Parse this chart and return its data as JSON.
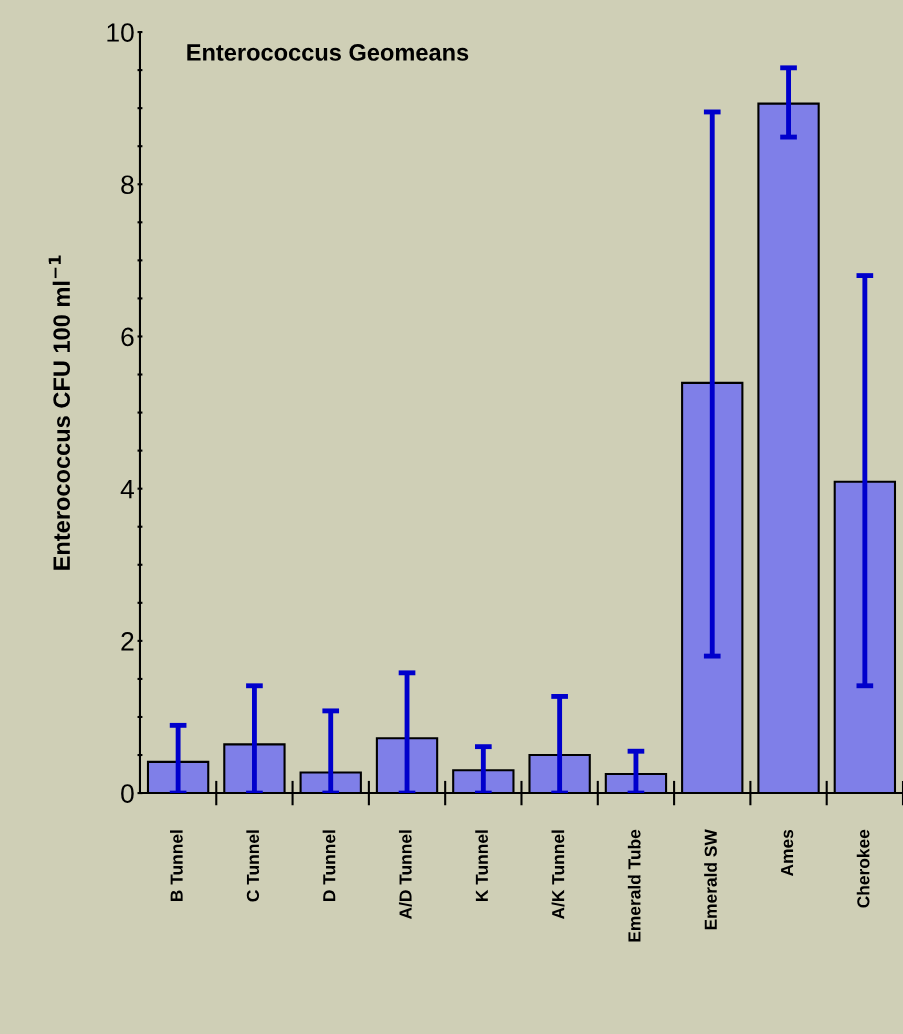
{
  "chart_data": {
    "type": "bar",
    "title": "Enterococcus Geomeans",
    "ylabel": "Enterococcus CFU 100 ml$^{−1}$",
    "categories": [
      "B Tunnel",
      "C Tunnel",
      "D Tunnel",
      "A/D Tunnel",
      "K Tunnel",
      "A/K Tunnel",
      "Emerald Tube",
      "Emerald SW",
      "Ames",
      "Cherokee"
    ],
    "series": [
      {
        "color": "#7f7fe8",
        "values": [
          0.41,
          0.64,
          0.27,
          0.72,
          0.3,
          0.5,
          0.25,
          5.39,
          9.06,
          4.09
        ],
        "errors": [
          [
            0,
            0.89
          ],
          [
            0,
            1.41
          ],
          [
            0,
            1.08
          ],
          [
            0,
            1.58
          ],
          [
            0,
            0.61
          ],
          [
            0,
            1.27
          ],
          [
            0,
            0.55
          ],
          [
            1.8,
            8.95
          ],
          [
            8.62,
            9.53
          ],
          [
            1.41,
            6.8
          ]
        ]
      }
    ],
    "ylim": [
      0,
      10
    ],
    "yticks": [
      0,
      {
        "value": 0.5,
        "label": null
      },
      {
        "value": 1,
        "label": null
      },
      {
        "value": 1.5,
        "label": null
      },
      2,
      {
        "value": 2.5,
        "label": null
      },
      {
        "value": 3,
        "label": null
      },
      {
        "value": 3.5,
        "label": null
      },
      4,
      {
        "value": 4.5,
        "label": null
      },
      {
        "value": 5,
        "label": null
      },
      {
        "value": 5.5,
        "label": null
      },
      6,
      {
        "value": 6.5,
        "label": null
      },
      {
        "value": 7,
        "label": null
      },
      {
        "value": 7.5,
        "label": null
      },
      8,
      {
        "value": 8.5,
        "label": null
      },
      {
        "value": 9,
        "label": null
      },
      {
        "value": 9.5,
        "label": null
      },
      10
    ],
    "grid": false,
    "legend": false
  }
}
